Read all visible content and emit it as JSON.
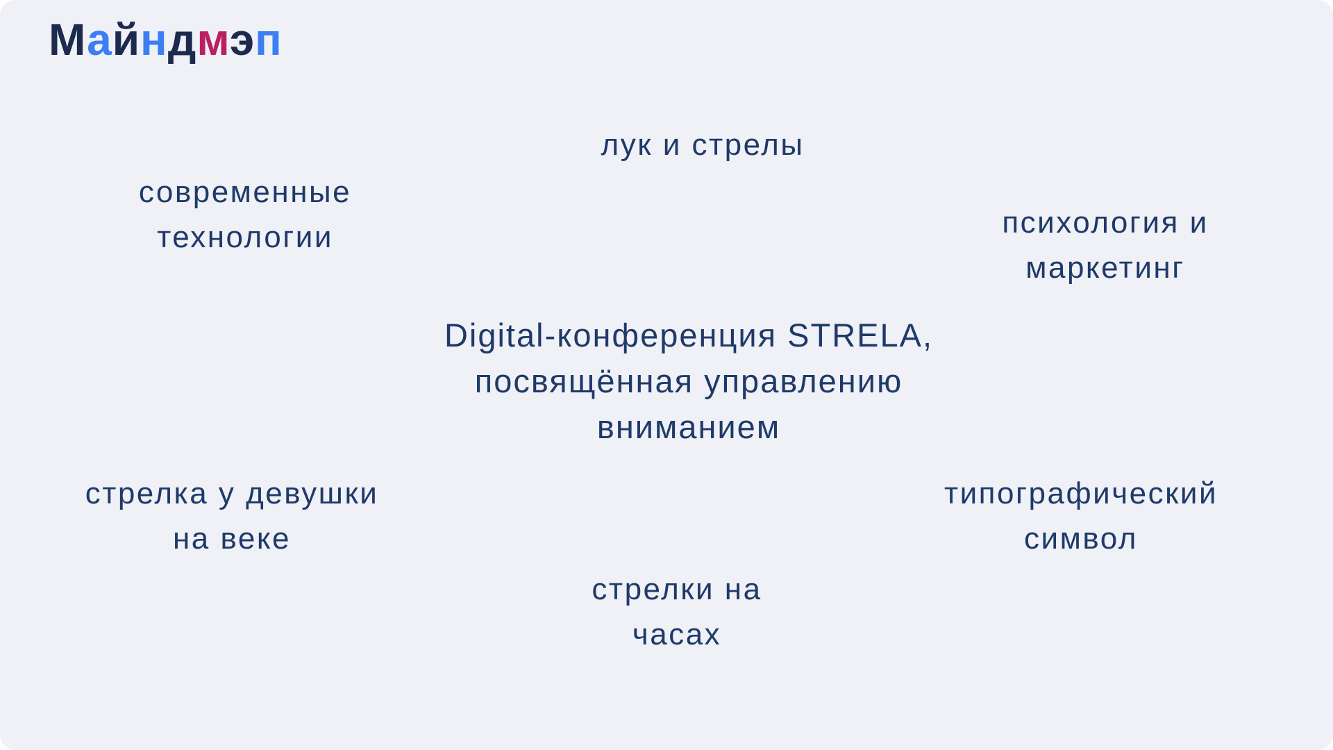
{
  "page": {
    "title": "Майндмэп",
    "canvas_color": "#eff1f7",
    "text_color": "#1f3a68"
  },
  "logo": {
    "text": "Майндмэп",
    "colors": {
      "navy": "#1c2b4d",
      "blue": "#3b7ff2",
      "magenta": "#b92064"
    },
    "letters": [
      {
        "char": "М",
        "color": "#1c2b4d"
      },
      {
        "char": "а",
        "color": "#3b7ff2"
      },
      {
        "char": "й",
        "color": "#1c2b4d"
      },
      {
        "char": "н",
        "color": "#3b7ff2"
      },
      {
        "char": "д",
        "color": "#1c2b4d"
      },
      {
        "char": "м",
        "color": "#b92064"
      },
      {
        "char": "э",
        "color": "#1c2b4d"
      },
      {
        "char": "п",
        "color": "#3b7ff2"
      }
    ]
  },
  "mindmap": {
    "center": {
      "label": "Digital-конференция STRELA,\nпосвящённая управлению\nвниманием"
    },
    "nodes": [
      {
        "id": "bow-and-arrows",
        "label": "лук и стрелы"
      },
      {
        "id": "modern-technologies",
        "label": "современные\nтехнологии"
      },
      {
        "id": "psychology-marketing",
        "label": "психология и\nмаркетинг"
      },
      {
        "id": "girl-eyeliner",
        "label": "стрелка у девушки\nна веке"
      },
      {
        "id": "typographic-symbol",
        "label": "типографический\nсимвол"
      },
      {
        "id": "clock-hands",
        "label": "стрелки на\nчасах"
      }
    ]
  }
}
